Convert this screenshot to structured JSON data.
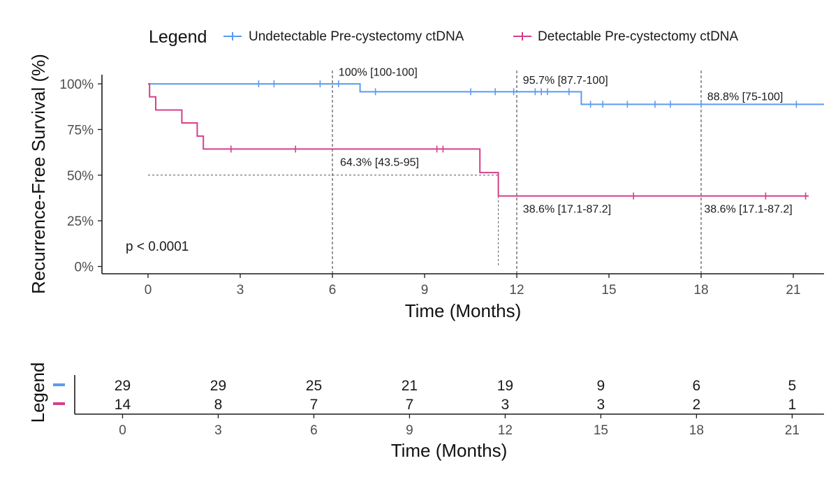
{
  "chart_data": {
    "type": "line",
    "legend": {
      "title": "Legend",
      "position": "top"
    },
    "xlabel": "Time (Months)",
    "ylabel": "Recurrence-Free Survival (%)",
    "xlim": [
      -1.5,
      22
    ],
    "ylim": [
      -4,
      105
    ],
    "x_ticks": [
      0,
      3,
      6,
      9,
      12,
      15,
      18,
      21
    ],
    "y_ticks": [
      0,
      25,
      50,
      75,
      100
    ],
    "y_tick_labels": [
      "0%",
      "25%",
      "50%",
      "75%",
      "100%"
    ],
    "grid": false,
    "p_value_text": "p < 0.0001",
    "series": [
      {
        "name": "Undetectable Pre-cystectomy ctDNA",
        "color": "#5b9bf0",
        "steps": [
          [
            0,
            100
          ],
          [
            6.9,
            95.7
          ],
          [
            14.1,
            88.8
          ],
          [
            22,
            88.8
          ]
        ],
        "censor_times": [
          3.6,
          4.1,
          5.6,
          6.2,
          7.4,
          10.5,
          11.3,
          11.9,
          12.6,
          12.8,
          13.0,
          13.7,
          14.4,
          14.8,
          15.6,
          16.5,
          17.0,
          18.0,
          21.1
        ]
      },
      {
        "name": "Detectable Pre-cystectomy ctDNA",
        "color": "#d63f8a",
        "steps": [
          [
            0,
            100
          ],
          [
            0.05,
            92.9
          ],
          [
            0.25,
            85.7
          ],
          [
            1.1,
            78.6
          ],
          [
            1.6,
            71.4
          ],
          [
            1.8,
            64.3
          ],
          [
            10.8,
            51.4
          ],
          [
            11.4,
            38.6
          ],
          [
            21.5,
            38.6
          ]
        ],
        "censor_times": [
          2.7,
          4.8,
          9.4,
          9.6,
          15.8,
          20.1,
          21.4
        ]
      }
    ],
    "reference_lines": [
      {
        "type": "vertical",
        "x": 6
      },
      {
        "type": "vertical",
        "x": 12
      },
      {
        "type": "vertical",
        "x": 18
      },
      {
        "type": "median",
        "y": 50,
        "x_end": 11.4
      }
    ],
    "annotations": [
      {
        "text": "100% [100-100]",
        "x": 6.2,
        "y": 104.5
      },
      {
        "text": "95.7% [87.7-100]",
        "x": 12.2,
        "y": 100
      },
      {
        "text": "88.8% [75-100]",
        "x": 18.2,
        "y": 91
      },
      {
        "text": "64.3% [43.5-95]",
        "x": 6.25,
        "y": 55
      },
      {
        "text": "38.6% [17.1-87.2]",
        "x": 12.2,
        "y": 29.5
      },
      {
        "text": "38.6% [17.1-87.2]",
        "x": 18.1,
        "y": 29.5
      }
    ],
    "risk_table": {
      "ylabel": "Legend",
      "xlabel": "Time (Months)",
      "times": [
        0,
        3,
        6,
        9,
        12,
        15,
        18,
        21
      ],
      "rows": [
        {
          "color": "#5b9bf0",
          "counts": [
            "29",
            "29",
            "25",
            "21",
            "19",
            "9",
            "6",
            "5"
          ]
        },
        {
          "color": "#d63f8a",
          "counts": [
            "14",
            "8",
            "7",
            "7",
            "3",
            "3",
            "2",
            "1"
          ]
        }
      ]
    }
  }
}
